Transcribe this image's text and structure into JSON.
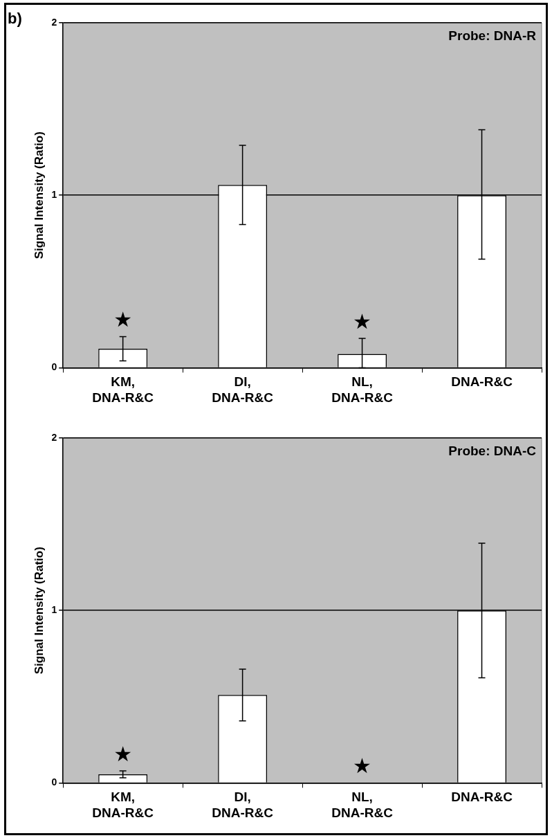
{
  "chart_data": [
    {
      "type": "bar",
      "title": "b)",
      "ylabel": "Signal Intensity (Ratio)",
      "categories": [
        "KM, DNA-R&C",
        "DI, DNA-R&C",
        "NL, DNA-R&C",
        "DNA-R&C"
      ],
      "values": [
        0.11,
        1.06,
        0.08,
        1
      ],
      "errors": [
        [
          0.04,
          0.18
        ],
        [
          0.83,
          1.29
        ],
        [
          0,
          0.17
        ],
        [
          0.63,
          1.38
        ]
      ],
      "color": "#ffffff",
      "ylim": [
        0,
        2
      ],
      "yticks": [
        0,
        1,
        2
      ],
      "grid": "y",
      "value_labels": [
        "★",
        null,
        "★",
        null
      ],
      "annotations": [
        "Probe: DNA-R"
      ]
    },
    {
      "type": "bar",
      "ylabel": "Signal Intensity (Ratio)",
      "categories": [
        "KM, DNA-R&C",
        "DI, DNA-R&C",
        "NL, DNA-R&C",
        "DNA-R&C"
      ],
      "values": [
        0.05,
        0.51,
        0,
        1
      ],
      "errors": [
        [
          0.03,
          0.07
        ],
        [
          0.36,
          0.66
        ],
        null,
        [
          0.61,
          1.39
        ]
      ],
      "color": "#ffffff",
      "ylim": [
        0,
        2
      ],
      "yticks": [
        0,
        1,
        2
      ],
      "grid": "y",
      "value_labels": [
        "★",
        null,
        "★",
        null
      ],
      "annotations": [
        "Probe: DNA-C"
      ]
    }
  ]
}
